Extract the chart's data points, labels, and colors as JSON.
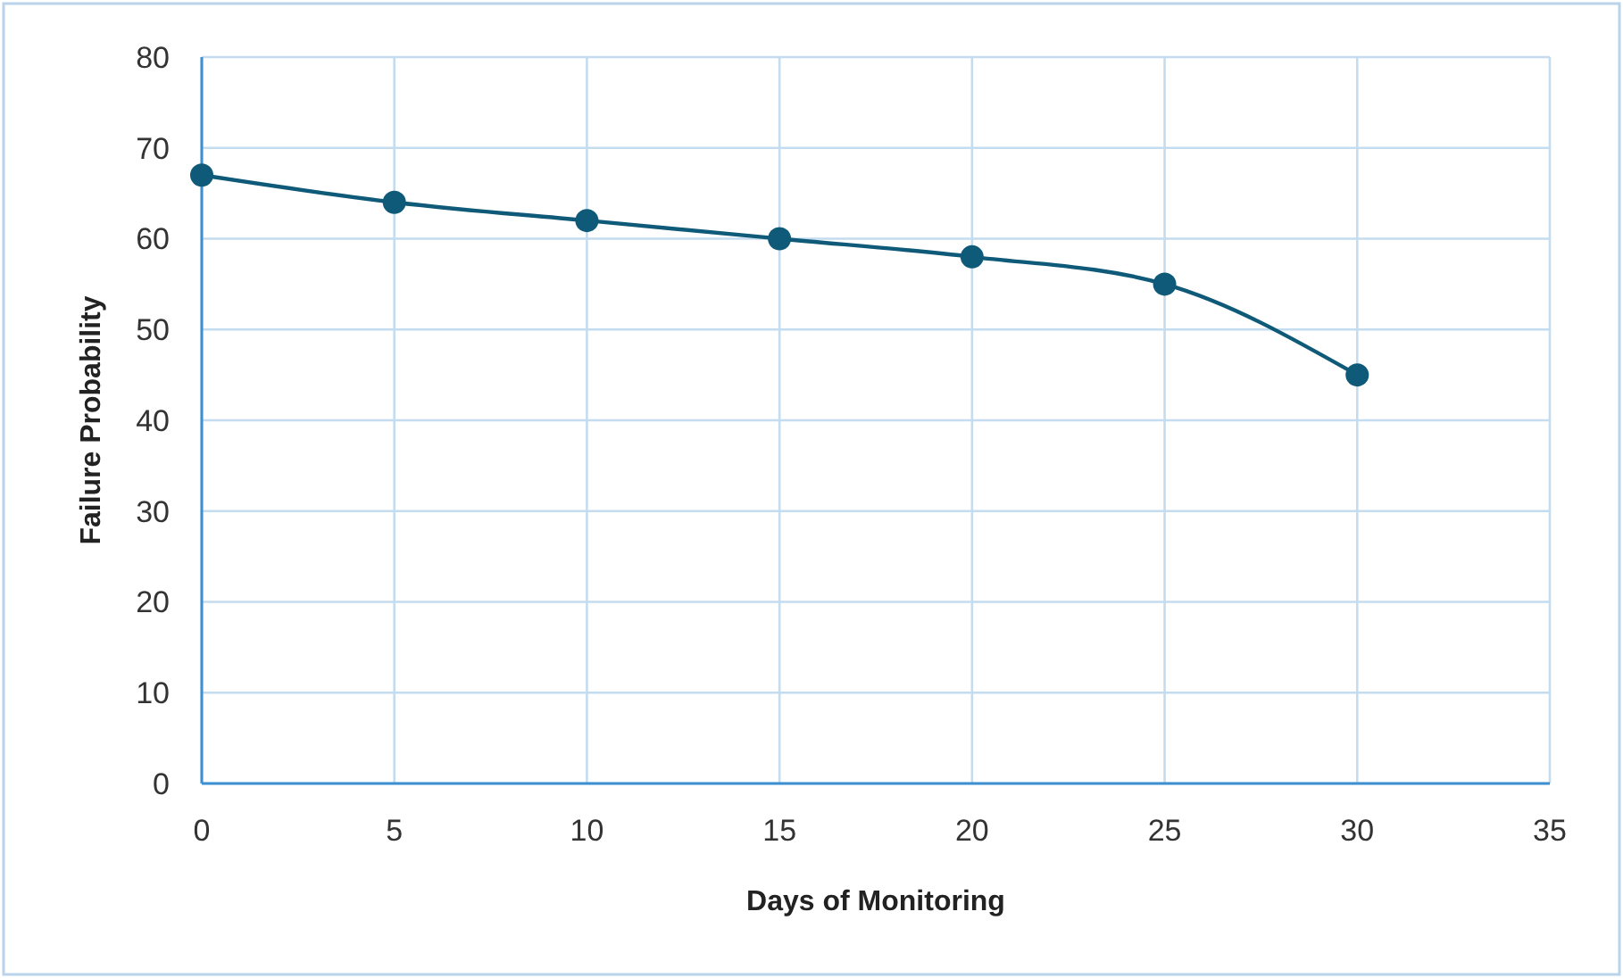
{
  "chart_data": {
    "type": "line",
    "xlabel": "Days of Monitoring",
    "ylabel": "Failure Probability",
    "x": [
      0,
      5,
      10,
      15,
      20,
      25,
      30
    ],
    "series": [
      {
        "color": "#0f5a78",
        "values": [
          67,
          64,
          62,
          60,
          58,
          55,
          45
        ]
      }
    ],
    "xlim": [
      0,
      35
    ],
    "xticks": [
      0,
      5,
      10,
      15,
      20,
      25,
      30,
      35
    ],
    "ylim": [
      0,
      80
    ],
    "yticks": [
      0,
      10,
      20,
      30,
      40,
      50,
      60,
      70,
      80
    ],
    "grid": true,
    "marker": "circle",
    "line_style": "solid"
  }
}
